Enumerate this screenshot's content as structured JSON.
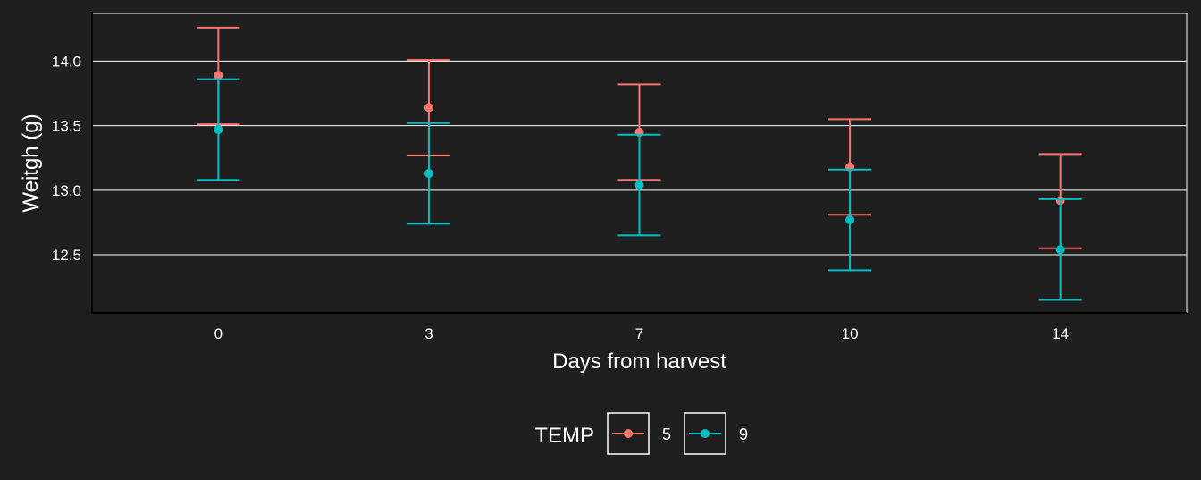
{
  "chart_data": {
    "type": "scatter",
    "title": "",
    "xlabel": "Days from harvest",
    "ylabel": "Weitgh (g)",
    "categories": [
      "0",
      "3",
      "7",
      "10",
      "14"
    ],
    "ylim": [
      12.05,
      14.37
    ],
    "yticks": [
      12.5,
      13.0,
      13.5,
      14.0
    ],
    "ytick_labels": [
      "12.5",
      "13.0",
      "13.5",
      "14.0"
    ],
    "grid": "horizontal major",
    "legend": {
      "title": "TEMP",
      "position": "bottom"
    },
    "series": [
      {
        "name": "5",
        "color": "#f8766d",
        "values": [
          13.89,
          13.64,
          13.45,
          13.18,
          12.92
        ],
        "lower": [
          13.51,
          13.27,
          13.08,
          12.81,
          12.55
        ],
        "upper": [
          14.26,
          14.01,
          13.82,
          13.55,
          13.28
        ]
      },
      {
        "name": "9",
        "color": "#00bfc4",
        "values": [
          13.47,
          13.13,
          13.04,
          12.77,
          12.54
        ],
        "lower": [
          13.08,
          12.74,
          12.65,
          12.38,
          12.15
        ],
        "upper": [
          13.86,
          13.52,
          13.43,
          13.16,
          12.93
        ]
      }
    ]
  }
}
